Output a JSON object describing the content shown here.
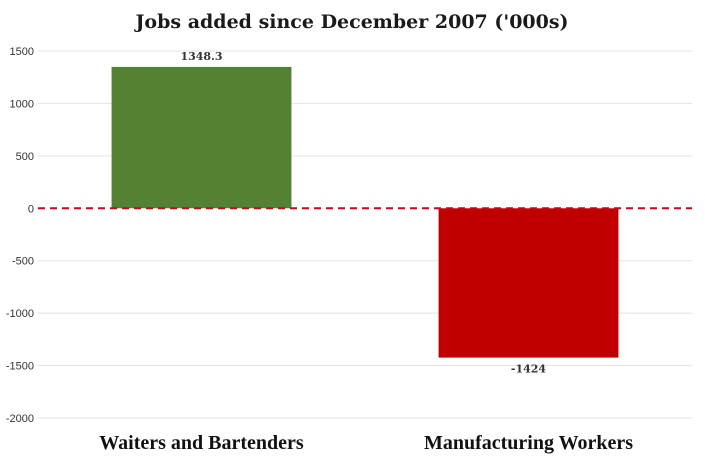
{
  "chart_data": {
    "type": "bar",
    "title": "Jobs added since December 2007 ('000s)",
    "categories": [
      "Waiters and Bartenders",
      "Manufacturing Workers"
    ],
    "values": [
      1348.3,
      -1424
    ],
    "value_labels": [
      "1348.3",
      "-1424"
    ],
    "colors": [
      "#548235",
      "#c00000"
    ],
    "zero_line_color": "#d0021b",
    "ylim": [
      -2000,
      1500
    ],
    "yticks": [
      1500,
      1000,
      500,
      0,
      -500,
      -1000,
      -1500,
      -2000
    ],
    "ytick_labels": [
      "1500",
      "1000",
      "500",
      "0",
      "-500",
      "-1000",
      "-1500",
      "-2000"
    ],
    "grid": true,
    "legend": "none"
  }
}
